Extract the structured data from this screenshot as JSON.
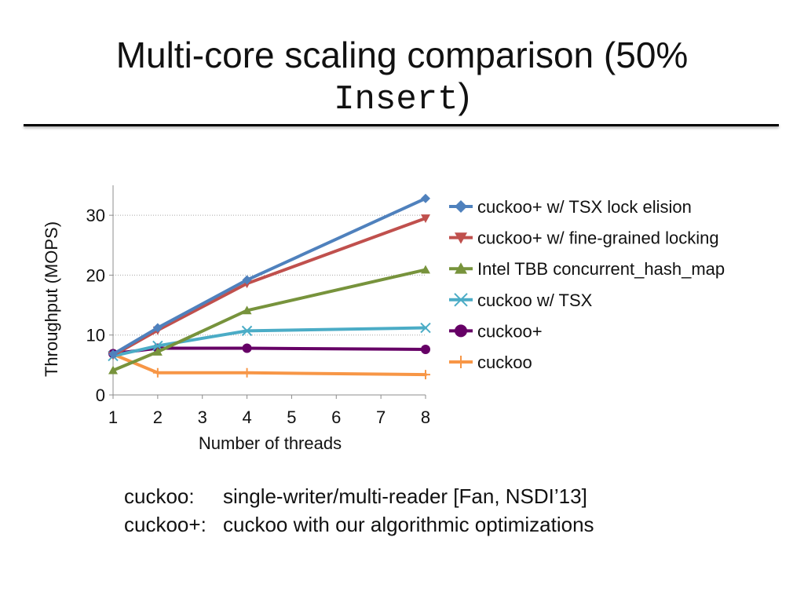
{
  "slide": {
    "title_line1": "Multi-core scaling comparison (50%",
    "title_line2_mono": "Insert",
    "title_line2_tail": ")",
    "notes": [
      {
        "key": "cuckoo:",
        "text": "single-writer/multi-reader [Fan, NSDI’13]"
      },
      {
        "key": "cuckoo+:",
        "text": "cuckoo with our algorithmic optimizations"
      }
    ]
  },
  "chart_data": {
    "type": "line",
    "title": "",
    "xlabel": "Number of threads",
    "ylabel": "Throughput (MOPS)",
    "xlim": [
      1,
      8
    ],
    "ylim": [
      0,
      35
    ],
    "xticks": [
      1,
      2,
      3,
      4,
      5,
      6,
      7,
      8
    ],
    "yticks": [
      0,
      10,
      20,
      30
    ],
    "grid": "horizontal dotted",
    "legend_position": "right",
    "series": [
      {
        "name": "cuckoo+ w/ TSX lock elision",
        "color": "#4f81bd",
        "marker": "diamond",
        "x": [
          1,
          2,
          4,
          8
        ],
        "y": [
          6.8,
          11.2,
          19.2,
          32.8
        ]
      },
      {
        "name": "cuckoo+ w/ fine-grained locking",
        "color": "#c0504d",
        "marker": "triangle-down",
        "x": [
          1,
          2,
          4,
          8
        ],
        "y": [
          6.6,
          10.8,
          18.6,
          29.5
        ]
      },
      {
        "name": "Intel TBB concurrent_hash_map",
        "color": "#77933c",
        "marker": "triangle-up",
        "x": [
          1,
          2,
          4,
          8
        ],
        "y": [
          4.1,
          7.2,
          14.1,
          20.9
        ]
      },
      {
        "name": "cuckoo w/ TSX",
        "color": "#4bacc6",
        "marker": "x",
        "x": [
          1,
          2,
          4,
          8
        ],
        "y": [
          6.5,
          8.2,
          10.7,
          11.2
        ]
      },
      {
        "name": "cuckoo+",
        "color": "#660066",
        "marker": "circle",
        "x": [
          1,
          2,
          4,
          8
        ],
        "y": [
          6.9,
          7.8,
          7.8,
          7.6
        ]
      },
      {
        "name": "cuckoo",
        "color": "#f79646",
        "marker": "plus",
        "x": [
          1,
          2,
          4,
          8
        ],
        "y": [
          6.8,
          3.7,
          3.7,
          3.4
        ]
      }
    ]
  }
}
